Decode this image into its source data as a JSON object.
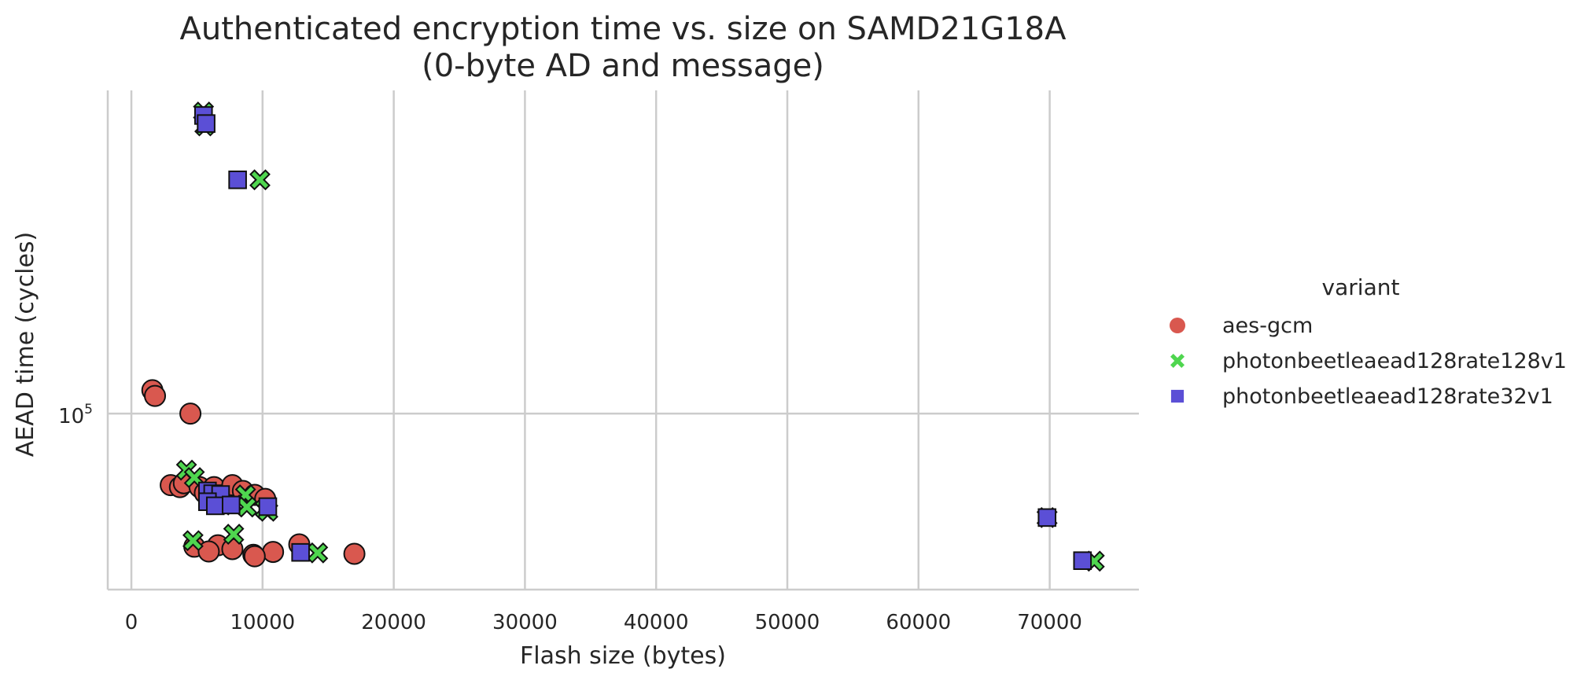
{
  "chart_data": {
    "type": "scatter",
    "title_line1": "Authenticated encryption time vs. size on SAMD21G18A",
    "title_line2": "(0-byte AD and message)",
    "xlabel": "Flash size (bytes)",
    "ylabel": "AEAD time (cycles)",
    "xlim": [
      -1800,
      76800
    ],
    "ylim": [
      56000,
      290000
    ],
    "y_scale": "log",
    "x_ticks": [
      0,
      10000,
      20000,
      30000,
      40000,
      50000,
      60000,
      70000
    ],
    "x_tick_labels": [
      "0",
      "10000",
      "20000",
      "30000",
      "40000",
      "50000",
      "60000",
      "70000"
    ],
    "y_ticks": [
      100000
    ],
    "y_tick_labels": [
      {
        "base": "10",
        "exp": "5"
      }
    ],
    "grid": true,
    "legend": {
      "title": "variant",
      "placement": "right"
    },
    "series": [
      {
        "name": "aes-gcm",
        "marker": "circle",
        "color": "#d9584f",
        "points": [
          [
            1600,
            108000
          ],
          [
            1800,
            106000
          ],
          [
            4500,
            100000
          ],
          [
            3000,
            79000
          ],
          [
            3700,
            78500
          ],
          [
            4000,
            79500
          ],
          [
            5200,
            78500
          ],
          [
            5600,
            77000
          ],
          [
            6300,
            78500
          ],
          [
            7700,
            79000
          ],
          [
            8500,
            77500
          ],
          [
            9400,
            76500
          ],
          [
            10200,
            75500
          ],
          [
            4800,
            64500
          ],
          [
            6600,
            64800
          ],
          [
            7700,
            64000
          ],
          [
            9300,
            62800
          ],
          [
            10800,
            63400
          ],
          [
            12800,
            65000
          ],
          [
            17000,
            63000
          ],
          [
            5900,
            63500
          ],
          [
            9400,
            62500
          ]
        ]
      },
      {
        "name": "photonbeetleaead128rate128v1",
        "marker": "x",
        "color": "#4fd64f",
        "points": [
          [
            5500,
            270000
          ],
          [
            5600,
            258000
          ],
          [
            9800,
            216000
          ],
          [
            4200,
            83000
          ],
          [
            4800,
            81000
          ],
          [
            8700,
            76500
          ],
          [
            7800,
            74000
          ],
          [
            8800,
            73500
          ],
          [
            10200,
            73000
          ],
          [
            10400,
            72500
          ],
          [
            69800,
            71000
          ],
          [
            4700,
            65800
          ],
          [
            7800,
            67200
          ],
          [
            14200,
            63200
          ],
          [
            73400,
            61500
          ]
        ]
      },
      {
        "name": "photonbeetleaead128rate32v1",
        "marker": "square",
        "color": "#5b4fd6",
        "points": [
          [
            5500,
            267000
          ],
          [
            5700,
            260000
          ],
          [
            8100,
            216000
          ],
          [
            5800,
            77500
          ],
          [
            6200,
            76800
          ],
          [
            6800,
            76600
          ],
          [
            5800,
            74800
          ],
          [
            6400,
            73800
          ],
          [
            7600,
            74000
          ],
          [
            10400,
            73600
          ],
          [
            69800,
            71000
          ],
          [
            12900,
            63300
          ],
          [
            72500,
            61600
          ]
        ]
      }
    ]
  }
}
